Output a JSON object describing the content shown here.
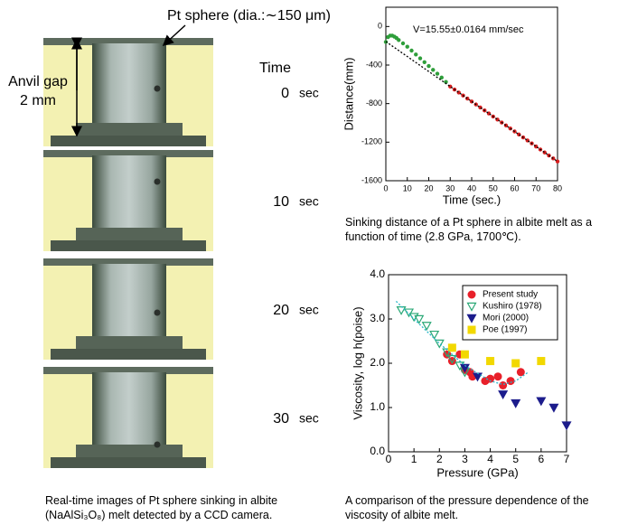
{
  "left": {
    "annotation": "Pt sphere (dia.:∼150 μm)",
    "gap_label": "Anvil gap",
    "gap_value": "2 mm",
    "time_header": "Time",
    "frames": [
      {
        "time": "0",
        "unit": "sec"
      },
      {
        "time": "10",
        "unit": "sec"
      },
      {
        "time": "20",
        "unit": "sec"
      },
      {
        "time": "30",
        "unit": "sec"
      }
    ],
    "caption": "Real-time images of Pt sphere sinking in albite (NaAlSi₃O₈) melt detected by a CCD camera."
  },
  "captions": [
    "Sinking distance of a Pt sphere in albite melt as a function of time (2.8 GPa, 1700℃).",
    "A comparison of the pressure dependence of the viscosity of albite melt."
  ],
  "chart_data": [
    {
      "type": "scatter",
      "x_label": "Time (sec.)",
      "y_label": "Distance(mm)",
      "annotation": "V=15.55±0.0164 mm/sec",
      "xlim": [
        0,
        80
      ],
      "xticks": [
        0,
        10,
        20,
        30,
        40,
        50,
        60,
        70,
        80
      ],
      "ylim": [
        -1600,
        200
      ],
      "yticks": [
        -1600,
        -1200,
        -800,
        -400,
        0
      ],
      "series": [
        {
          "color": "#2e9e3a",
          "marker": "circle",
          "x": [
            0,
            1,
            2,
            3,
            4,
            5,
            6,
            8,
            10,
            12,
            14,
            16,
            18,
            20,
            22,
            24,
            26,
            28
          ],
          "values": [
            -160,
            -110,
            -95,
            -95,
            -105,
            -120,
            -140,
            -175,
            -210,
            -250,
            -290,
            -330,
            -370,
            -410,
            -450,
            -490,
            -530,
            -575
          ]
        },
        {
          "color": "#d81e1e",
          "marker": "circle",
          "x": [
            30,
            32,
            34,
            36,
            38,
            40,
            42,
            44,
            46,
            48,
            50,
            52,
            54,
            56,
            58,
            60,
            62,
            64,
            66,
            68,
            70,
            72,
            74,
            76,
            78,
            80
          ],
          "values": [
            -623,
            -654,
            -685,
            -716,
            -747,
            -778,
            -809,
            -840,
            -871,
            -902,
            -934,
            -965,
            -996,
            -1027,
            -1058,
            -1089,
            -1120,
            -1151,
            -1182,
            -1213,
            -1245,
            -1276,
            -1307,
            -1338,
            -1369,
            -1400
          ]
        },
        {
          "color": "#000000",
          "marker": "line",
          "x": [
            0,
            80
          ],
          "values": [
            -156,
            -1400
          ]
        }
      ]
    },
    {
      "type": "scatter",
      "x_label": "Pressure (GPa)",
      "y_label": "Viscosity, log h(poise)",
      "legend": "upper right",
      "xlim": [
        0,
        7
      ],
      "xticks": [
        0,
        1,
        2,
        3,
        4,
        5,
        6,
        7
      ],
      "ylim": [
        0,
        4
      ],
      "yticks": [
        {
          "value": 0,
          "label": "0.0"
        },
        {
          "value": 1,
          "label": "1.0"
        },
        {
          "value": 2,
          "label": "2.0"
        },
        {
          "value": 3,
          "label": "3.0"
        },
        {
          "value": 4,
          "label": "4.0"
        }
      ],
      "series": [
        {
          "name": "Present study",
          "color": "#e8202a",
          "marker": "circle",
          "x": [
            2.3,
            2.5,
            2.8,
            3.0,
            3.2,
            3.3,
            3.8,
            4.0,
            4.3,
            4.5,
            4.8,
            5.2
          ],
          "values": [
            2.2,
            2.05,
            2.2,
            1.85,
            1.8,
            1.7,
            1.6,
            1.65,
            1.7,
            1.5,
            1.6,
            1.8
          ]
        },
        {
          "name": "Kushiro (1978)",
          "color": "#2aa876",
          "marker": "triangle-open",
          "x": [
            0.5,
            0.8,
            1.0,
            1.2,
            1.5,
            1.8,
            2.0,
            2.3,
            2.5,
            2.8,
            3.0
          ],
          "values": [
            3.2,
            3.15,
            3.05,
            3.0,
            2.85,
            2.65,
            2.45,
            2.25,
            2.1,
            1.95,
            1.8
          ]
        },
        {
          "name": "Mori (2000)",
          "color": "#1c1c8c",
          "marker": "triangle",
          "x": [
            3.0,
            3.5,
            4.5,
            5.0,
            6.0,
            6.5,
            7.0
          ],
          "values": [
            1.9,
            1.7,
            1.3,
            1.1,
            1.15,
            1.0,
            0.6
          ]
        },
        {
          "name": "Poe (1997)",
          "color": "#f2d800",
          "marker": "square",
          "x": [
            2.5,
            3.0,
            4.0,
            5.0,
            6.0
          ],
          "values": [
            2.35,
            2.2,
            2.05,
            2.0,
            2.05
          ]
        },
        {
          "color": "#25b5c8",
          "marker": "line",
          "x": [
            0.3,
            1,
            2,
            3,
            4,
            4.5,
            5,
            5.5
          ],
          "values": [
            3.4,
            3.0,
            2.45,
            1.95,
            1.6,
            1.52,
            1.6,
            1.8
          ]
        }
      ]
    }
  ]
}
